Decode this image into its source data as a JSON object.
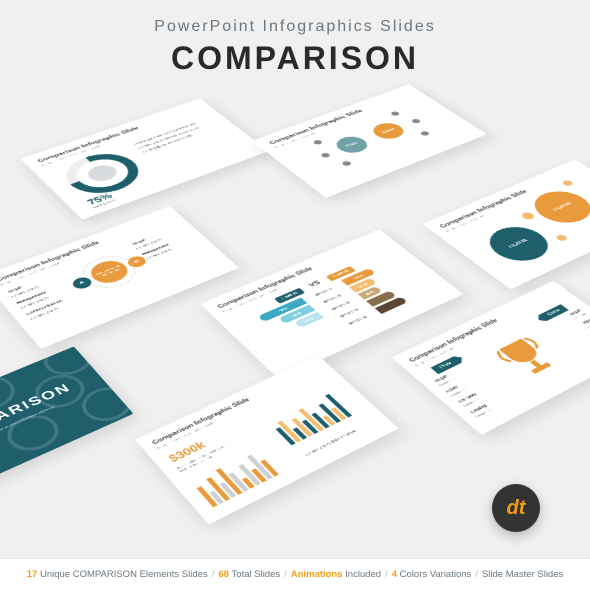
{
  "header": {
    "subtitle": "PowerPoint Infographics Slides",
    "title": "COMPARISON"
  },
  "footer": {
    "p1a": "17",
    "p1b": "Unique COMPARISON Elements Slides",
    "p2a": "68",
    "p2b": "Total Slides",
    "p3": "Animations Included",
    "p4a": "4",
    "p4b": "Colors Variations",
    "p5": "Slide Master Slides"
  },
  "logo": "dt",
  "colors": {
    "teal": "#1e5f6b",
    "tealLight": "#6fa3a8",
    "orange": "#e89a3c",
    "orangeLight": "#f3bd72",
    "tan": "#c9a878",
    "blue": "#3ba9c4",
    "blueLight": "#7fcde0",
    "dark": "#3a3a3a",
    "greyBar": "#d0d0d0"
  },
  "slides": {
    "cover": {
      "title": "COMPARISON"
    },
    "s1": {
      "title": "Comparison Infographic Slide",
      "percent": "75%",
      "label": "Going UP!"
    },
    "s2": {
      "title": "Comparison Infographic Slide",
      "a": "A",
      "b": "B",
      "labels": [
        "Target",
        "Management",
        "Communication"
      ],
      "center": "Analyst Asset Investment"
    },
    "s3": {
      "title": "Comparison Infographic Slide",
      "pros": "Pros",
      "cons": "Cons"
    },
    "s4": {
      "title": "Comparison Infographic Slide",
      "item1": "ITEM 01",
      "item2": "ITEM 02"
    },
    "s5": {
      "title": "Comparison Infographic Slide",
      "vs": "VS",
      "item1": "ITEM 01",
      "item2": "ITEM 02",
      "bars1": [
        70,
        50,
        37
      ],
      "bars2": [
        50,
        37,
        32
      ],
      "options": [
        "OPTION 01",
        "OPTION 02",
        "OPTION 03",
        "OPTION 04",
        "OPTION 05"
      ]
    },
    "s6": {
      "title": "Comparison Infographic Slide",
      "pros": "Pros",
      "cons": "Cons",
      "labels": [
        "Target",
        "Injury",
        "Warranty",
        "Catalog",
        "Management"
      ]
    },
    "s7": {
      "title": "Comparison Infographic Slide",
      "value": "$300k",
      "cols1": [
        30,
        18,
        35,
        22,
        40,
        28,
        15,
        32,
        20,
        38,
        25
      ],
      "cols2": [
        28,
        35,
        18,
        30,
        22,
        38,
        25,
        15,
        32,
        20,
        40
      ]
    }
  }
}
